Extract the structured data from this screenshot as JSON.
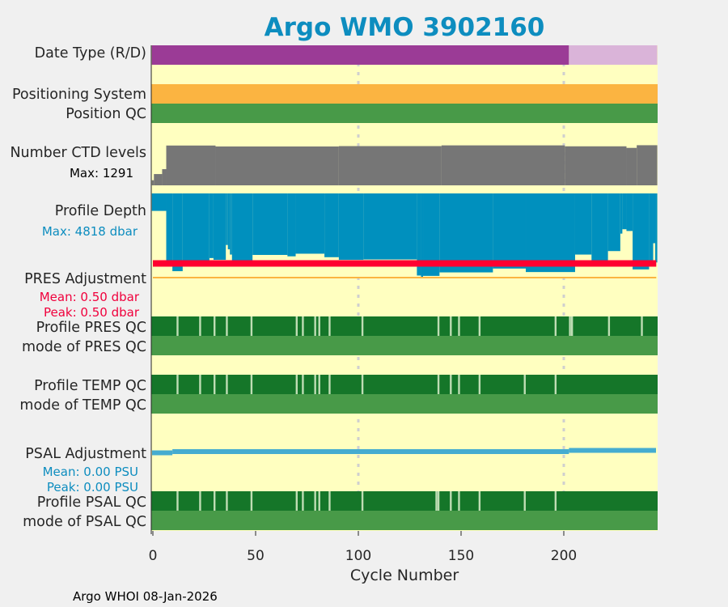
{
  "chart_data": {
    "type": "bar",
    "title": "Argo WMO 3902160",
    "xlabel": "Cycle Number",
    "xlim": [
      -0.5,
      245.5
    ],
    "xticks": [
      0,
      50,
      100,
      150,
      200
    ],
    "grid_x": [
      100,
      200
    ],
    "footer": "Argo WHOI 08-Jan-2026",
    "panels": {
      "date_type": {
        "label": "Date Type (R/D)",
        "segments": [
          {
            "from": 0,
            "to": 202,
            "mode": "R",
            "color": "#9B3B96"
          },
          {
            "from": 203,
            "to": 245,
            "mode": "D",
            "color": "#DAB4D9"
          }
        ]
      },
      "positioning_system": {
        "label": "Positioning System",
        "color": "#FBB441"
      },
      "position_qc": {
        "label": "Position QC",
        "color": "#489A48"
      },
      "ctd_levels": {
        "label": "Number CTD levels",
        "max_label": "Max: 1291",
        "max": 1291,
        "color": "#767676",
        "segments": [
          [
            0,
            0,
            163
          ],
          [
            1,
            4,
            360
          ],
          [
            5,
            6,
            516
          ],
          [
            7,
            30,
            1270
          ],
          [
            31,
            90,
            1240
          ],
          [
            91,
            140,
            1252
          ],
          [
            141,
            200,
            1275
          ],
          [
            201,
            230,
            1245
          ],
          [
            231,
            235,
            1195
          ],
          [
            236,
            245,
            1280
          ]
        ]
      },
      "profile_depth": {
        "label": "Profile Depth",
        "max_label": "Max: 4818 dbar",
        "max": 4818,
        "unit": "dbar",
        "color": "#0090BE",
        "segments": [
          [
            0,
            6,
            1000
          ],
          [
            7,
            9,
            3850
          ],
          [
            10,
            14,
            4450
          ],
          [
            15,
            27,
            4150
          ],
          [
            28,
            29,
            3700
          ],
          [
            30,
            35,
            3800
          ],
          [
            36,
            36,
            2950
          ],
          [
            37,
            37,
            3200
          ],
          [
            38,
            38,
            3500
          ],
          [
            39,
            48,
            3850
          ],
          [
            49,
            65,
            3520
          ],
          [
            66,
            69,
            3600
          ],
          [
            70,
            83,
            3450
          ],
          [
            84,
            90,
            3650
          ],
          [
            91,
            102,
            3800
          ],
          [
            103,
            128,
            3780
          ],
          [
            129,
            130,
            4700
          ],
          [
            131,
            131,
            4818
          ],
          [
            132,
            139,
            4720
          ],
          [
            140,
            165,
            4520
          ],
          [
            166,
            181,
            4300
          ],
          [
            182,
            205,
            4500
          ],
          [
            206,
            213,
            3500
          ],
          [
            214,
            221,
            3900
          ],
          [
            222,
            227,
            3300
          ],
          [
            228,
            228,
            2300
          ],
          [
            229,
            230,
            2050
          ],
          [
            231,
            233,
            2150
          ],
          [
            234,
            241,
            4350
          ],
          [
            242,
            243,
            3850
          ],
          [
            244,
            244,
            2850
          ],
          [
            245,
            245,
            3950
          ]
        ]
      },
      "pres_adjustment": {
        "label": "PRES Adjustment",
        "mean_label": "Mean: 0.50 dbar",
        "peak_label": "Peak: 0.50 dbar",
        "value": 0.5,
        "color": "#FF0030",
        "zero_color": "#FBB441"
      },
      "pres_qc": {
        "label": "Profile PRES QC",
        "mode_label": "mode of PRES QC",
        "good_color": "#157629",
        "mode_color": "#489A48",
        "flag_color": "#BFDDB4",
        "flagged_cycles": [
          12,
          23,
          30,
          36,
          48,
          70,
          73,
          79,
          81,
          86,
          102,
          139,
          145,
          149,
          159,
          196,
          203,
          204,
          222,
          238
        ]
      },
      "temp_qc": {
        "label": "Profile TEMP QC",
        "mode_label": "mode of TEMP QC",
        "flagged_cycles": [
          12,
          23,
          30,
          36,
          48,
          70,
          73,
          79,
          81,
          86,
          102,
          139,
          145,
          149,
          159,
          181,
          196
        ]
      },
      "psal_adjustment": {
        "label": "PSAL Adjustment",
        "mean_label": "Mean: 0.00 PSU",
        "peak_label": "Peak: 0.00 PSU",
        "color": "#45ACD0",
        "segments": [
          [
            0,
            9,
            -0.001
          ],
          [
            10,
            202,
            0
          ],
          [
            203,
            245,
            0.001
          ]
        ]
      },
      "psal_qc": {
        "label": "Profile PSAL QC",
        "mode_label": "mode of PSAL QC",
        "flagged_cycles": [
          12,
          23,
          30,
          36,
          48,
          70,
          73,
          79,
          81,
          86,
          102,
          138,
          139,
          145,
          149,
          159,
          181,
          196
        ]
      }
    }
  }
}
